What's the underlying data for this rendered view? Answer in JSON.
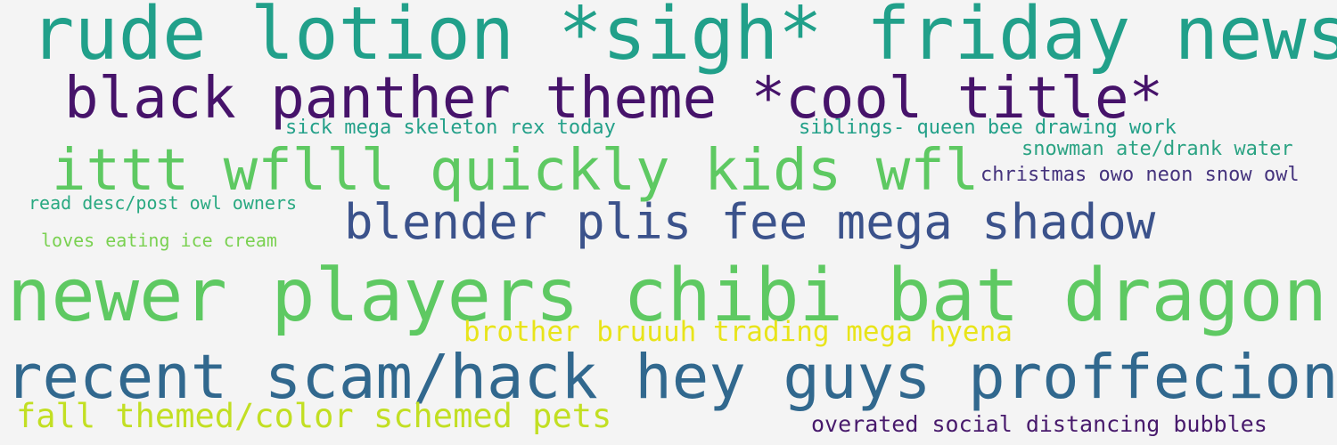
{
  "phrases": [
    {
      "text": "rude lotion *sigh* friday news",
      "color": "#21a08a"
    },
    {
      "text": "black panther theme *cool title*",
      "color": "#46136a"
    },
    {
      "text": "sick mega skeleton rex today",
      "color": "#25a18a"
    },
    {
      "text": "siblings- queen bee drawing work",
      "color": "#22a088"
    },
    {
      "text": "snowman ate/drank water",
      "color": "#2ba383"
    },
    {
      "text": "ittt wflll quickly kids wfl",
      "color": "#5ec962"
    },
    {
      "text": "christmas owo neon snow owl",
      "color": "#45337d"
    },
    {
      "text": "read desc/post owl owners",
      "color": "#29a981"
    },
    {
      "text": "blender plis fee mega shadow",
      "color": "#3b528b"
    },
    {
      "text": "loves eating ice cream",
      "color": "#7ad151"
    },
    {
      "text": "newer players chibi bat dragon",
      "color": "#5ec962"
    },
    {
      "text": "brother bruuuh trading mega hyena",
      "color": "#e8e41a"
    },
    {
      "text": "recent scam/hack hey guys proffecional",
      "color": "#31688e"
    },
    {
      "text": "fall themed/color schemed pets",
      "color": "#c2df23"
    },
    {
      "text": "overated social distancing bubbles",
      "color": "#481a6c"
    }
  ]
}
